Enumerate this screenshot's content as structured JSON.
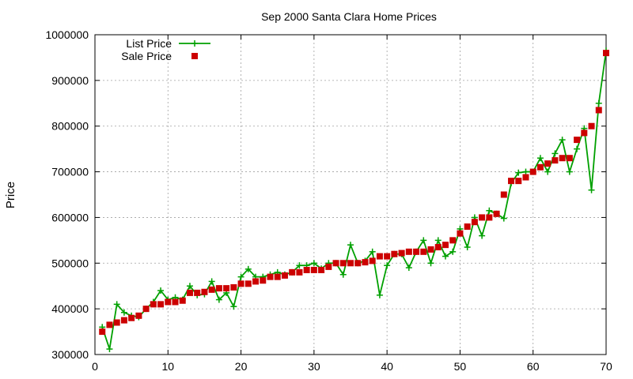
{
  "chart_data": {
    "type": "line",
    "title": "Sep 2000 Santa Clara Home Prices",
    "xlabel": "",
    "ylabel": "Price",
    "xlim": [
      0,
      70
    ],
    "ylim": [
      300000,
      1000000
    ],
    "x_ticks": [
      "0",
      "10",
      "20",
      "30",
      "40",
      "50",
      "60",
      "70"
    ],
    "y_ticks": [
      "300000",
      "400000",
      "500000",
      "600000",
      "700000",
      "800000",
      "900000",
      "1000000"
    ],
    "grid": true,
    "legend_position": "top-left",
    "x": [
      1,
      2,
      3,
      4,
      5,
      6,
      7,
      8,
      9,
      10,
      11,
      12,
      13,
      14,
      15,
      16,
      17,
      18,
      19,
      20,
      21,
      22,
      23,
      24,
      25,
      26,
      27,
      28,
      29,
      30,
      31,
      32,
      33,
      34,
      35,
      36,
      37,
      38,
      39,
      40,
      41,
      42,
      43,
      44,
      45,
      46,
      47,
      48,
      49,
      50,
      51,
      52,
      53,
      54,
      55,
      56,
      57,
      58,
      59,
      60,
      61,
      62,
      63,
      64,
      65,
      66,
      67,
      68,
      69,
      70
    ],
    "series": [
      {
        "name": "List Price",
        "style": "line-plus",
        "color": "#00a000",
        "values": [
          360000,
          312000,
          410000,
          392000,
          385000,
          382000,
          400000,
          415000,
          440000,
          420000,
          425000,
          420000,
          450000,
          430000,
          432000,
          460000,
          420000,
          435000,
          405000,
          470000,
          487000,
          470000,
          470000,
          475000,
          480000,
          475000,
          480000,
          495000,
          495000,
          500000,
          488000,
          500000,
          500000,
          475000,
          540000,
          500000,
          505000,
          525000,
          430000,
          495000,
          520000,
          520000,
          490000,
          525000,
          550000,
          500000,
          550000,
          515000,
          525000,
          575000,
          535000,
          600000,
          560000,
          615000,
          608000,
          598000,
          675000,
          698000,
          700000,
          700000,
          730000,
          700000,
          740000,
          770000,
          700000,
          750000,
          795000,
          660000,
          850000,
          965000
        ]
      },
      {
        "name": "Sale Price",
        "style": "square",
        "color": "#cc0000",
        "values": [
          350000,
          365000,
          370000,
          375000,
          380000,
          385000,
          400000,
          410000,
          410000,
          415000,
          415000,
          418000,
          435000,
          435000,
          437000,
          442000,
          445000,
          445000,
          447000,
          455000,
          455000,
          460000,
          462000,
          470000,
          470000,
          473000,
          480000,
          480000,
          485000,
          485000,
          485000,
          492000,
          500000,
          500000,
          500000,
          500000,
          502000,
          505000,
          515000,
          515000,
          520000,
          522000,
          525000,
          525000,
          525000,
          530000,
          535000,
          540000,
          550000,
          565000,
          580000,
          590000,
          600000,
          600000,
          608000,
          650000,
          680000,
          680000,
          688000,
          700000,
          710000,
          718000,
          725000,
          730000,
          730000,
          770000,
          785000,
          800000,
          835000,
          960000
        ]
      }
    ]
  }
}
